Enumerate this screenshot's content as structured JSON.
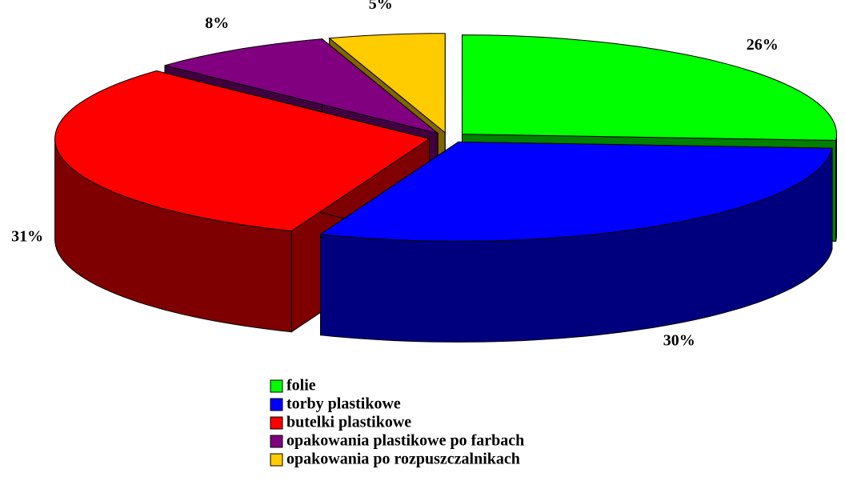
{
  "chart_data": {
    "type": "pie3d",
    "categories": [
      "folie",
      "torby plastikowe",
      "butelki plastikowe",
      "opakowania plastikowe po farbach",
      "opakowania po rozpuszczalnikach"
    ],
    "values": [
      26,
      30,
      31,
      8,
      5
    ],
    "value_labels": [
      "26%",
      "30%",
      "31%",
      "8%",
      "5%"
    ],
    "colors": [
      "#00ff00",
      "#0000ff",
      "#ff0000",
      "#800080",
      "#ffcc00"
    ],
    "legend": "bottom"
  }
}
